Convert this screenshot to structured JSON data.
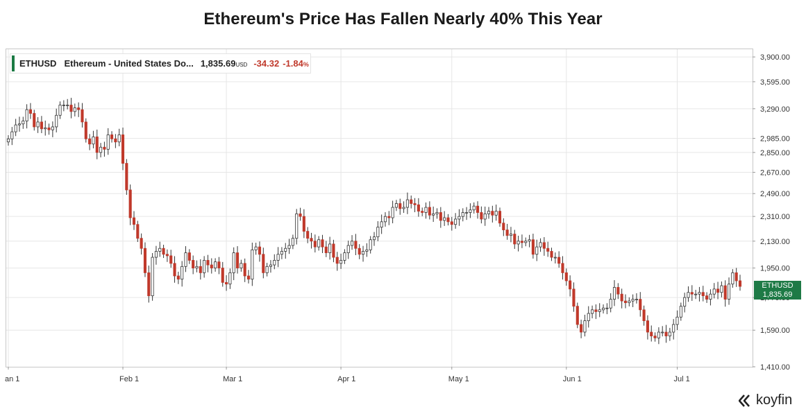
{
  "title": "Ethereum's Price Has Fallen Nearly 40% This Year",
  "ticker": {
    "symbol": "ETHUSD",
    "name": "Ethereum - United States Do...",
    "price": "1,835.69",
    "unit": "USD",
    "change": "-34.32",
    "pct": "-1.84",
    "pct_sign": "%"
  },
  "badge": {
    "symbol": "ETHUSD",
    "value": "1,835.69"
  },
  "logo": "koyfin",
  "colors": {
    "up": "#ffffff",
    "down": "#c0392b",
    "wick": "#333333",
    "badge": "#1e7a46",
    "grid": "#e6e6e6"
  },
  "chart_data": {
    "type": "candlestick",
    "title": "Ethereum's Price Has Fallen Nearly 40% This Year",
    "y_ticks": [
      1410,
      1590,
      1770,
      1950,
      2130,
      2310,
      2490,
      2670,
      2850,
      2985,
      3290,
      3595,
      3900
    ],
    "y_tick_labels": [
      "1,410.00",
      "1,590.00",
      "1,770.00",
      "1,950.00",
      "2,130.00",
      "2,310.00",
      "2,490.00",
      "2,670.00",
      "2,850.00",
      "2,985.00",
      "3,290.00",
      "3,595.00",
      "3,900.00"
    ],
    "y_scale": "log",
    "ylim": [
      1410,
      4000
    ],
    "x_ticks": [
      {
        "label": "an 1",
        "index": 0
      },
      {
        "label": "Feb 1",
        "index": 31
      },
      {
        "label": "Mar 1",
        "index": 59
      },
      {
        "label": "Apr 1",
        "index": 90
      },
      {
        "label": "May 1",
        "index": 120
      },
      {
        "label": "Jun 1",
        "index": 151
      },
      {
        "label": "Jul 1",
        "index": 181
      }
    ],
    "candle_count": 199,
    "last_price": 1835.69,
    "closes": [
      2980,
      3050,
      3120,
      3130,
      3160,
      3280,
      3240,
      3100,
      3150,
      3080,
      3090,
      3070,
      3100,
      3220,
      3330,
      3330,
      3330,
      3260,
      3300,
      3280,
      3150,
      2980,
      2930,
      3000,
      2850,
      2900,
      2880,
      3020,
      2980,
      2950,
      3020,
      2750,
      2520,
      2300,
      2250,
      2150,
      2080,
      1920,
      1780,
      2020,
      2060,
      2080,
      2040,
      2030,
      1980,
      1900,
      1880,
      1960,
      2050,
      2000,
      1950,
      1960,
      1920,
      2000,
      1970,
      1950,
      1990,
      1950,
      1860,
      1850,
      1920,
      2050,
      1950,
      1980,
      1900,
      1880,
      2070,
      2090,
      2040,
      1920,
      1960,
      1970,
      2000,
      2040,
      2060,
      2080,
      2100,
      2150,
      2330,
      2310,
      2200,
      2150,
      2130,
      2090,
      2140,
      2090,
      2050,
      2110,
      2020,
      1980,
      2000,
      2050,
      2100,
      2130,
      2080,
      2040,
      2060,
      2070,
      2140,
      2160,
      2230,
      2270,
      2310,
      2300,
      2380,
      2410,
      2370,
      2380,
      2440,
      2410,
      2400,
      2350,
      2340,
      2380,
      2320,
      2330,
      2340,
      2280,
      2300,
      2270,
      2250,
      2290,
      2310,
      2340,
      2340,
      2360,
      2390,
      2340,
      2290,
      2330,
      2350,
      2320,
      2350,
      2260,
      2210,
      2170,
      2180,
      2110,
      2130,
      2120,
      2130,
      2140,
      2040,
      2090,
      2120,
      2080,
      2060,
      2020,
      2020,
      1980,
      1920,
      1870,
      1820,
      1720,
      1620,
      1580,
      1640,
      1680,
      1700,
      1690,
      1700,
      1710,
      1710,
      1760,
      1830,
      1790,
      1750,
      1740,
      1750,
      1760,
      1760,
      1700,
      1640,
      1580,
      1560,
      1550,
      1580,
      1580,
      1560,
      1580,
      1620,
      1660,
      1720,
      1770,
      1800,
      1790,
      1790,
      1800,
      1780,
      1760,
      1790,
      1820,
      1800,
      1840,
      1760,
      1850,
      1920,
      1870,
      1836
    ]
  }
}
